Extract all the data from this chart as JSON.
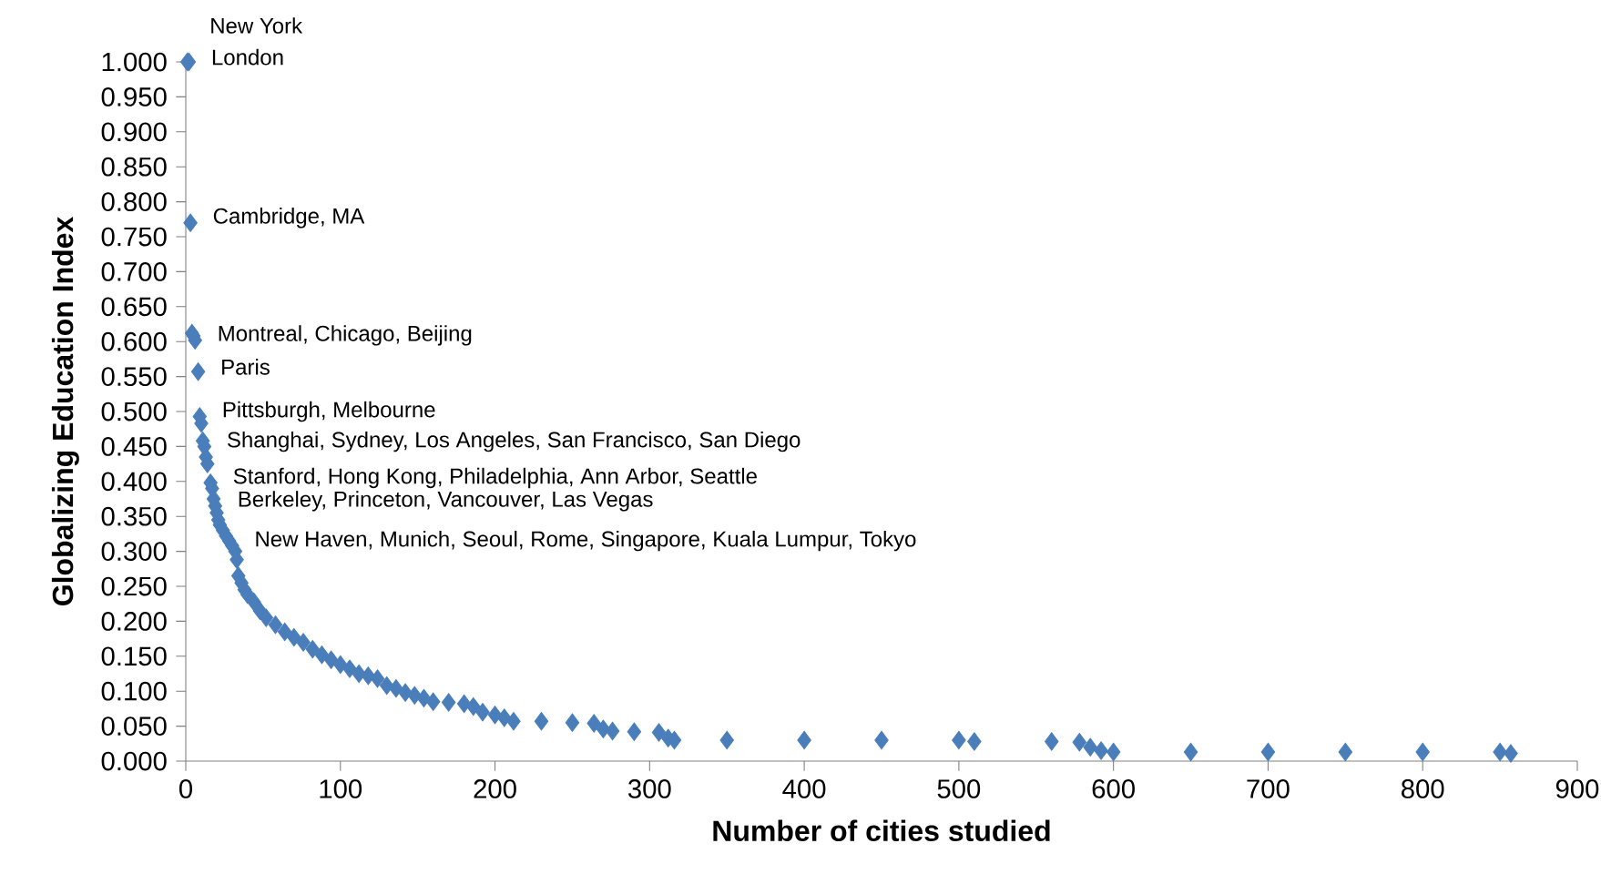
{
  "chart_data": {
    "type": "scatter",
    "xlabel": "Number of cities studied",
    "ylabel": "Globalizing Education Index",
    "marker": "diamond",
    "series": [
      {
        "color": "#4a7ebb",
        "x": [
          1,
          2,
          3,
          4,
          5,
          6,
          8,
          9,
          10,
          11,
          12,
          13,
          14,
          16,
          17,
          18,
          19,
          20,
          21,
          22,
          24,
          26,
          28,
          30,
          32,
          33,
          34,
          36,
          38,
          40,
          44,
          48,
          52,
          58,
          64,
          70,
          76,
          82,
          88,
          94,
          100,
          106,
          112,
          118,
          124,
          130,
          136,
          142,
          148,
          154,
          160,
          170,
          180,
          186,
          192,
          200,
          206,
          212,
          230,
          250,
          264,
          270,
          276,
          290,
          306,
          312,
          316,
          350,
          400,
          450,
          500,
          510,
          560,
          578,
          585,
          592,
          600,
          650,
          700,
          750,
          800,
          850,
          857
        ],
        "values": [
          1.0,
          1.0,
          0.77,
          0.612,
          0.608,
          0.602,
          0.557,
          0.493,
          0.483,
          0.458,
          0.45,
          0.435,
          0.425,
          0.398,
          0.39,
          0.375,
          0.365,
          0.355,
          0.345,
          0.338,
          0.33,
          0.322,
          0.315,
          0.308,
          0.3,
          0.288,
          0.265,
          0.255,
          0.245,
          0.238,
          0.228,
          0.215,
          0.205,
          0.195,
          0.185,
          0.177,
          0.17,
          0.16,
          0.152,
          0.145,
          0.138,
          0.132,
          0.125,
          0.122,
          0.118,
          0.108,
          0.104,
          0.098,
          0.094,
          0.09,
          0.085,
          0.084,
          0.082,
          0.078,
          0.07,
          0.066,
          0.062,
          0.057,
          0.057,
          0.055,
          0.054,
          0.046,
          0.043,
          0.042,
          0.041,
          0.033,
          0.03,
          0.03,
          0.03,
          0.03,
          0.03,
          0.028,
          0.028,
          0.027,
          0.02,
          0.015,
          0.013,
          0.013,
          0.013,
          0.013,
          0.013,
          0.013,
          0.011
        ]
      }
    ],
    "xlim": [
      0,
      900
    ],
    "xticks": [
      0,
      100,
      200,
      300,
      400,
      500,
      600,
      700,
      800,
      900
    ],
    "ylim": [
      0,
      1
    ],
    "yticks": [
      {
        "value": 0,
        "label": "0.000"
      },
      {
        "value": 0.05,
        "label": "0.050"
      },
      {
        "value": 0.1,
        "label": "0.100"
      },
      {
        "value": 0.15,
        "label": "0.150"
      },
      {
        "value": 0.2,
        "label": "0.200"
      },
      {
        "value": 0.25,
        "label": "0.250"
      },
      {
        "value": 0.3,
        "label": "0.300"
      },
      {
        "value": 0.35,
        "label": "0.350"
      },
      {
        "value": 0.4,
        "label": "0.400"
      },
      {
        "value": 0.45,
        "label": "0.450"
      },
      {
        "value": 0.5,
        "label": "0.500"
      },
      {
        "value": 0.55,
        "label": "0.550"
      },
      {
        "value": 0.6,
        "label": "0.600"
      },
      {
        "value": 0.65,
        "label": "0.650"
      },
      {
        "value": 0.7,
        "label": "0.700"
      },
      {
        "value": 0.75,
        "label": "0.750"
      },
      {
        "value": 0.8,
        "label": "0.800"
      },
      {
        "value": 0.85,
        "label": "0.850"
      },
      {
        "value": 0.9,
        "label": "0.900"
      },
      {
        "value": 0.95,
        "label": "0.950"
      },
      {
        "value": 1,
        "label": "1.000"
      }
    ],
    "annotations": [
      {
        "text": "New York",
        "x": 1,
        "y": 1.0
      },
      {
        "text": "London",
        "x": 2,
        "y": 1.0
      },
      {
        "text": "Cambridge, MA",
        "x": 3,
        "y": 0.77
      },
      {
        "text": "Montreal, Chicago, Beijing",
        "x": 6,
        "y": 0.602
      },
      {
        "text": "Paris",
        "x": 8,
        "y": 0.557
      },
      {
        "text": "Pittsburgh, Melbourne",
        "x": 9,
        "y": 0.493
      },
      {
        "text": "Shanghai, Sydney, Los Angeles, San Francisco, San Diego",
        "x": 12,
        "y": 0.45
      },
      {
        "text": "Stanford, Hong Kong, Philadelphia, Ann Arbor, Seattle",
        "x": 16,
        "y": 0.398
      },
      {
        "text": "Berkeley, Princeton, Vancouver, Las Vegas",
        "x": 19,
        "y": 0.365
      },
      {
        "text": "New Haven, Munich, Seoul, Rome, Singapore, Kuala Lumpur, Tokyo",
        "x": 30,
        "y": 0.308
      }
    ]
  }
}
